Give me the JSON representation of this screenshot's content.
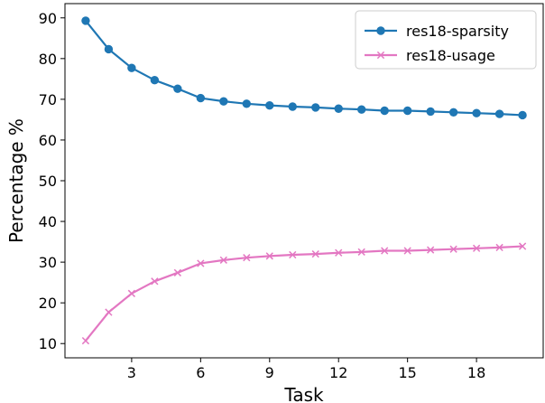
{
  "chart_data": {
    "type": "line",
    "title": "",
    "xlabel": "Task",
    "ylabel": "Percentage %",
    "xlim": [
      0.1,
      20.9
    ],
    "ylim": [
      6.5,
      93.5
    ],
    "xticks": [
      3,
      6,
      9,
      12,
      15,
      18
    ],
    "yticks": [
      10,
      20,
      30,
      40,
      50,
      60,
      70,
      80,
      90
    ],
    "grid": false,
    "legend_position": "top-right",
    "x": [
      1,
      2,
      3,
      4,
      5,
      6,
      7,
      8,
      9,
      10,
      11,
      12,
      13,
      14,
      15,
      16,
      17,
      18,
      19,
      20
    ],
    "series": [
      {
        "name": "res18-sparsity",
        "color": "#1f77b4",
        "marker": "circle",
        "values": [
          89.3,
          82.3,
          77.7,
          74.7,
          72.6,
          70.3,
          69.5,
          68.9,
          68.5,
          68.2,
          68.0,
          67.7,
          67.5,
          67.2,
          67.2,
          67.0,
          66.8,
          66.6,
          66.4,
          66.1
        ]
      },
      {
        "name": "res18-usage",
        "color": "#e377c2",
        "marker": "x",
        "values": [
          10.7,
          17.7,
          22.3,
          25.3,
          27.4,
          29.7,
          30.5,
          31.1,
          31.5,
          31.8,
          32.0,
          32.3,
          32.5,
          32.8,
          32.8,
          33.0,
          33.2,
          33.4,
          33.6,
          33.9
        ]
      }
    ]
  }
}
